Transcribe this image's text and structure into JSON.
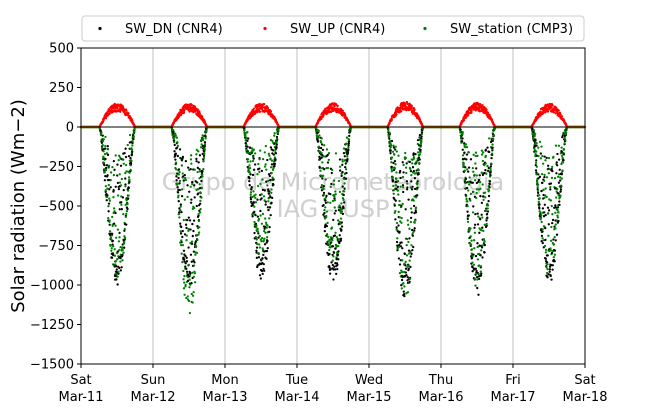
{
  "chart_data": {
    "type": "scatter",
    "ylabel": "Solar radiation ($Wm−2$)",
    "ylabel_display": "Solar radiation (Wm−2)",
    "ylim": [
      -1500,
      500
    ],
    "yticks": [
      500,
      250,
      0,
      -250,
      -500,
      -750,
      -1000,
      -1250,
      -1500
    ],
    "ytick_labels": [
      "500",
      "250",
      "0",
      "−250",
      "−500",
      "−750",
      "−1000",
      "−1250",
      "−1500"
    ],
    "xlim": [
      "2023-03-11",
      "2023-03-18"
    ],
    "xticks": [
      {
        "day": "Sat",
        "date": "Mar-11"
      },
      {
        "day": "Sun",
        "date": "Mar-12"
      },
      {
        "day": "Mon",
        "date": "Mar-13"
      },
      {
        "day": "Tue",
        "date": "Mar-14"
      },
      {
        "day": "Wed",
        "date": "Mar-15"
      },
      {
        "day": "Thu",
        "date": "Mar-16"
      },
      {
        "day": "Fri",
        "date": "Mar-17"
      },
      {
        "day": "Sat",
        "date": "Mar-18"
      }
    ],
    "grid_x": true,
    "grid_y": false,
    "hline": 0,
    "legend_position": "top-center",
    "watermark": [
      "Grupo de Micrometeorologia",
      "IAG - USP"
    ],
    "series": [
      {
        "name": "SW_DN (CNR4)",
        "color": "#000000",
        "marker": "•",
        "daily_min": [
          -1000,
          -1020,
          -970,
          -1000,
          -1100,
          -1080,
          -1000
        ],
        "peak_hour": [
          12.0,
          12.2,
          11.5,
          11.8,
          12.3,
          12.0,
          11.8
        ]
      },
      {
        "name": "SW_UP (CNR4)",
        "color": "#ff0000",
        "marker": "•",
        "daily_max": [
          150,
          150,
          150,
          150,
          160,
          155,
          150
        ]
      },
      {
        "name": "SW_station (CMP3)",
        "color": "#008000",
        "marker": "•",
        "daily_min": [
          -990,
          -1200,
          -850,
          -870,
          -1090,
          -1030,
          -960
        ]
      }
    ]
  }
}
